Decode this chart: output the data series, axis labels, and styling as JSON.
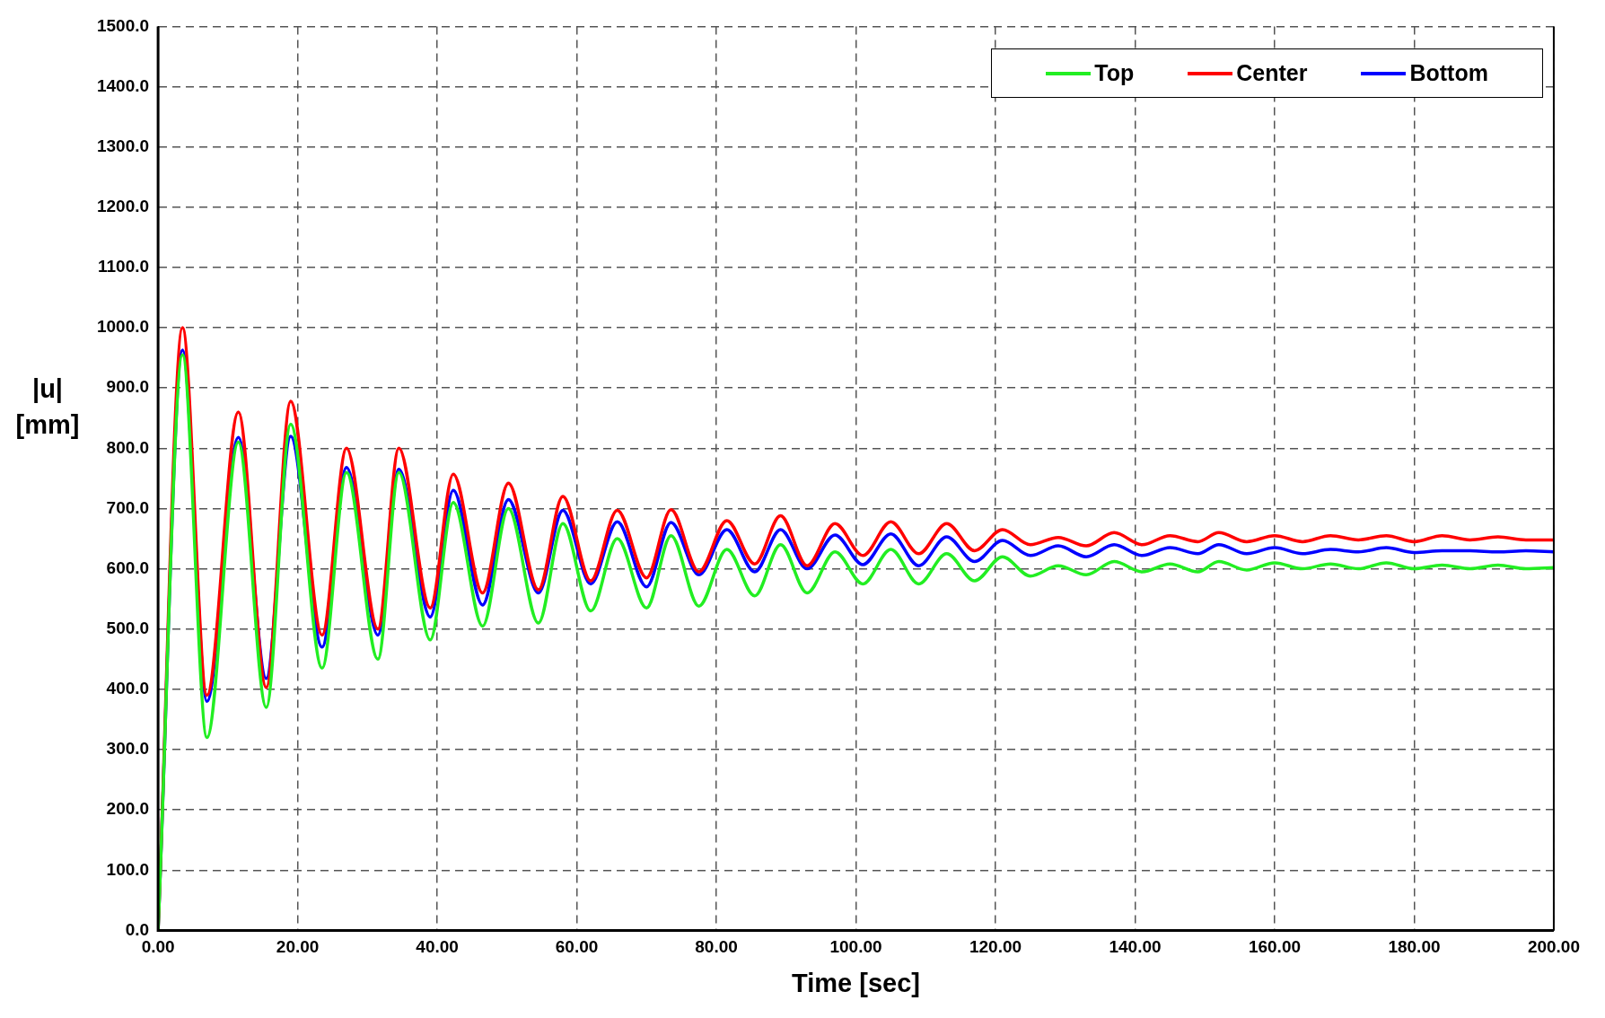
{
  "chart_data": {
    "type": "line",
    "xlabel": "Time [sec]",
    "ylabel": "|u| [mm]",
    "x": [
      0,
      3.5,
      7,
      11.5,
      15.5,
      19,
      23.5,
      27,
      31.5,
      34.5,
      39,
      42.3,
      46.5,
      50.2,
      54.5,
      58,
      62,
      65.8,
      70,
      73.5,
      77.5,
      81.5,
      85.5,
      89.2,
      93,
      97,
      101,
      105,
      109,
      113,
      117,
      121,
      125,
      129,
      133,
      137,
      141,
      145,
      149,
      152,
      156,
      160,
      164,
      168,
      172,
      176,
      180,
      184,
      188,
      192,
      196,
      200
    ],
    "series": [
      {
        "name": "Top",
        "color": "#22ee22",
        "values": [
          0,
          955,
          320,
          810,
          370,
          840,
          435,
          760,
          450,
          760,
          482,
          710,
          505,
          700,
          510,
          675,
          530,
          650,
          535,
          655,
          538,
          632,
          555,
          640,
          560,
          628,
          575,
          632,
          575,
          625,
          580,
          620,
          588,
          605,
          590,
          612,
          595,
          608,
          595,
          612,
          598,
          610,
          600,
          608,
          600,
          610,
          600,
          606,
          600,
          606,
          600,
          602
        ]
      },
      {
        "name": "Center",
        "color": "#ff0000",
        "values": [
          0,
          1000,
          390,
          860,
          403,
          878,
          490,
          800,
          500,
          800,
          535,
          757,
          560,
          742,
          565,
          720,
          580,
          697,
          585,
          698,
          595,
          680,
          608,
          688,
          605,
          675,
          622,
          678,
          625,
          675,
          630,
          665,
          640,
          652,
          638,
          660,
          640,
          655,
          645,
          660,
          645,
          655,
          645,
          655,
          648,
          655,
          645,
          655,
          648,
          653,
          648,
          648
        ]
      },
      {
        "name": "Bottom",
        "color": "#0000ff",
        "values": [
          0,
          963,
          380,
          818,
          418,
          820,
          470,
          768,
          490,
          765,
          520,
          730,
          540,
          715,
          560,
          697,
          575,
          678,
          570,
          677,
          590,
          665,
          595,
          665,
          600,
          656,
          607,
          658,
          605,
          653,
          612,
          647,
          622,
          638,
          620,
          640,
          622,
          635,
          625,
          640,
          625,
          635,
          625,
          632,
          628,
          635,
          627,
          630,
          630,
          628,
          630,
          628
        ]
      }
    ],
    "xlim": [
      0,
      200
    ],
    "ylim": [
      0,
      1500
    ],
    "xticks": [
      {
        "value": 0,
        "label": "0.00"
      },
      {
        "value": 20,
        "label": "20.00"
      },
      {
        "value": 40,
        "label": "40.00"
      },
      {
        "value": 60,
        "label": "60.00"
      },
      {
        "value": 80,
        "label": "80.00"
      },
      {
        "value": 100,
        "label": "100.00"
      },
      {
        "value": 120,
        "label": "120.00"
      },
      {
        "value": 140,
        "label": "140.00"
      },
      {
        "value": 160,
        "label": "160.00"
      },
      {
        "value": 180,
        "label": "180.00"
      },
      {
        "value": 200,
        "label": "200.00"
      }
    ],
    "yticks": [
      {
        "value": 0,
        "label": "0.0"
      },
      {
        "value": 100,
        "label": "100.0"
      },
      {
        "value": 200,
        "label": "200.0"
      },
      {
        "value": 300,
        "label": "300.0"
      },
      {
        "value": 400,
        "label": "400.0"
      },
      {
        "value": 500,
        "label": "500.0"
      },
      {
        "value": 600,
        "label": "600.0"
      },
      {
        "value": 700,
        "label": "700.0"
      },
      {
        "value": 800,
        "label": "800.0"
      },
      {
        "value": 900,
        "label": "900.0"
      },
      {
        "value": 1000,
        "label": "1000.0"
      },
      {
        "value": 1100,
        "label": "1100.0"
      },
      {
        "value": 1200,
        "label": "1200.0"
      },
      {
        "value": 1300,
        "label": "1300.0"
      },
      {
        "value": 1400,
        "label": "1400.0"
      },
      {
        "value": 1500,
        "label": "1500.0"
      }
    ],
    "grid": true,
    "legend": "top right",
    "marker": "none",
    "line_style": "solid"
  }
}
